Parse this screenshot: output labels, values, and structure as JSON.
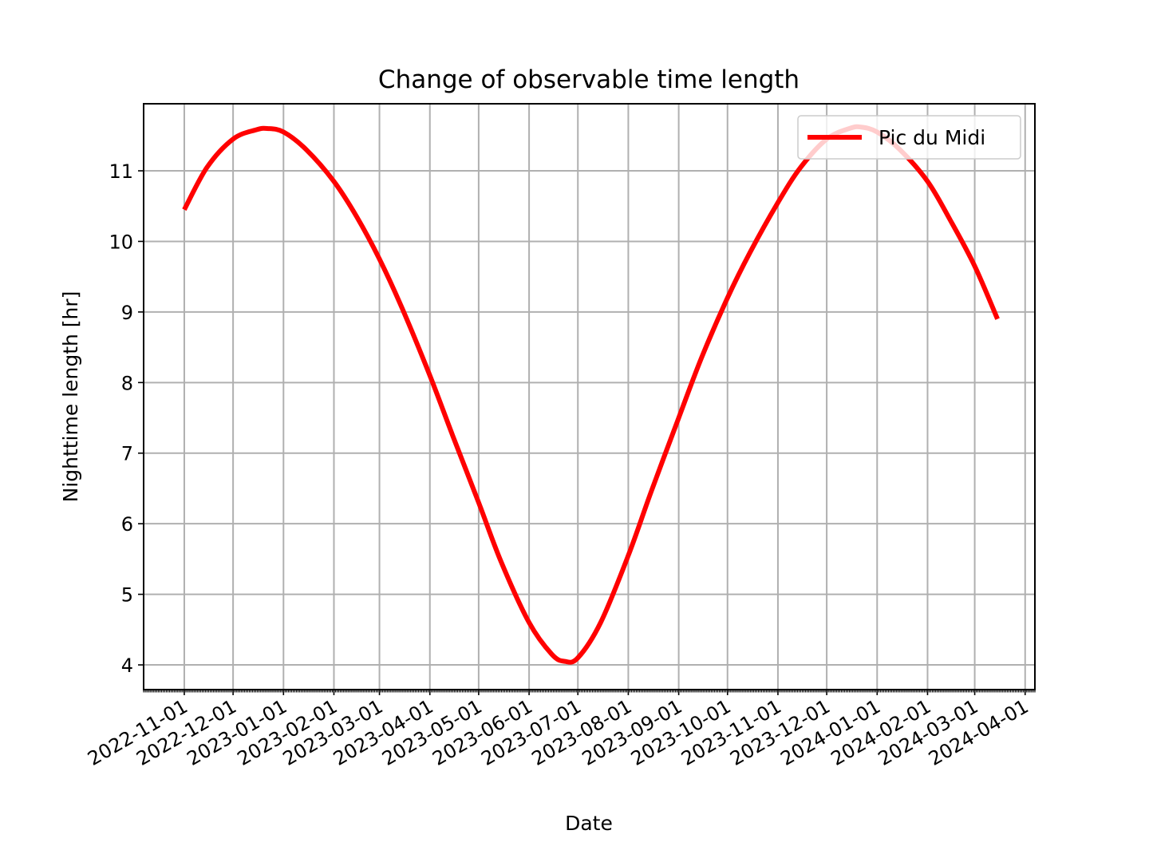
{
  "chart_data": {
    "type": "line",
    "title": "Change of observable time length",
    "xlabel": "Date",
    "ylabel": "Nighttime length [hr]",
    "x_ticks": [
      "2022-11-01",
      "2022-12-01",
      "2023-01-01",
      "2023-02-01",
      "2023-03-01",
      "2023-04-01",
      "2023-05-01",
      "2023-06-01",
      "2023-07-01",
      "2023-08-01",
      "2023-09-01",
      "2023-10-01",
      "2023-11-01",
      "2023-12-01",
      "2024-01-01",
      "2024-02-01",
      "2024-03-01",
      "2024-04-01"
    ],
    "y_ticks": [
      4,
      5,
      6,
      7,
      8,
      9,
      10,
      11
    ],
    "xlim": [
      "2022-10-07",
      "2024-04-07"
    ],
    "ylim": [
      3.65,
      11.95
    ],
    "grid": true,
    "legend_position": "upper right",
    "colors": {
      "line": "#ff0000",
      "grid": "#b0b0b0",
      "axes": "#000000"
    },
    "series": [
      {
        "name": "Pic du Midi",
        "x": [
          "2022-11-01",
          "2022-11-15",
          "2022-12-01",
          "2022-12-15",
          "2022-12-22",
          "2023-01-01",
          "2023-01-15",
          "2023-02-01",
          "2023-02-15",
          "2023-03-01",
          "2023-03-15",
          "2023-04-01",
          "2023-04-15",
          "2023-05-01",
          "2023-05-15",
          "2023-06-01",
          "2023-06-15",
          "2023-06-23",
          "2023-07-01",
          "2023-07-15",
          "2023-08-01",
          "2023-08-15",
          "2023-09-01",
          "2023-09-15",
          "2023-10-01",
          "2023-10-15",
          "2023-11-01",
          "2023-11-15",
          "2023-12-01",
          "2023-12-15",
          "2023-12-22",
          "2024-01-01",
          "2024-01-15",
          "2024-02-01",
          "2024-02-15",
          "2024-03-01",
          "2024-03-15"
        ],
        "y": [
          10.45,
          11.05,
          11.45,
          11.58,
          11.6,
          11.55,
          11.3,
          10.85,
          10.35,
          9.75,
          9.05,
          8.1,
          7.25,
          6.3,
          5.45,
          4.6,
          4.15,
          4.05,
          4.1,
          4.6,
          5.55,
          6.45,
          7.5,
          8.35,
          9.2,
          9.85,
          10.55,
          11.05,
          11.45,
          11.6,
          11.62,
          11.55,
          11.3,
          10.85,
          10.3,
          9.65,
          8.9
        ]
      }
    ]
  }
}
